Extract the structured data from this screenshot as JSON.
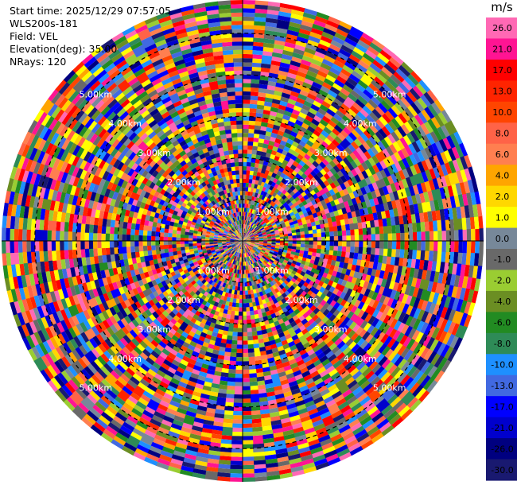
{
  "header": {
    "start_time": "Start time: 2025/12/29 07:57:05",
    "site": "WLS200s-181",
    "field": "Field: VEL",
    "elevation": "Elevation(deg): 35.00",
    "nrays": "NRays: 120"
  },
  "chart_data": {
    "type": "heatmap",
    "projection": "polar-ppi",
    "field": "VEL",
    "unit": "m/s",
    "n_rays": 120,
    "elevation_deg": 35.0,
    "range_rings_km": [
      "1.00km",
      "2.00km",
      "3.00km",
      "4.00km",
      "5.00km"
    ],
    "range_ring_values": [
      1,
      2,
      3,
      4,
      5
    ],
    "max_range_km": 5.8,
    "n_gates": 58,
    "colorbar": {
      "label": "m/s",
      "levels": [
        "26.0",
        "21.0",
        "17.0",
        "13.0",
        "10.0",
        "8.0",
        "6.0",
        "4.0",
        "2.0",
        "1.0",
        "0.0",
        "-1.0",
        "-2.0",
        "-4.0",
        "-6.0",
        "-8.0",
        "-10.0",
        "-13.0",
        "-17.0",
        "-21.0",
        "-26.0",
        "-30.0"
      ],
      "colors": [
        "#ff69b4",
        "#ff1493",
        "#ff0000",
        "#ff2400",
        "#ff4500",
        "#ff6347",
        "#ff7f50",
        "#ffa500",
        "#ffd700",
        "#ffff00",
        "#778899",
        "#696969",
        "#9acd32",
        "#6b8e23",
        "#228b22",
        "#2e8b57",
        "#1e90ff",
        "#4169e1",
        "#0000ff",
        "#0000cd",
        "#000080",
        "#191970"
      ]
    }
  }
}
